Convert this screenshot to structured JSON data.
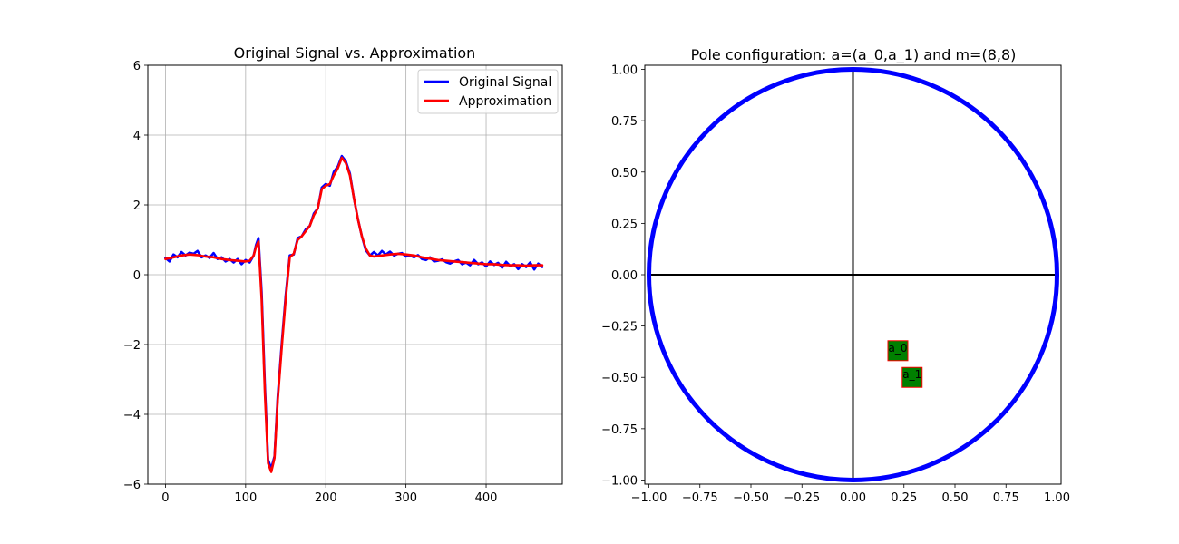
{
  "chart_data": [
    {
      "type": "line",
      "title": "Original Signal vs. Approximation",
      "xlabel": "",
      "ylabel": "",
      "xlim": [
        -22,
        495
      ],
      "ylim": [
        -6,
        6
      ],
      "x_ticks": [
        0,
        100,
        200,
        300,
        400
      ],
      "y_ticks": [
        -6,
        -4,
        -2,
        0,
        2,
        4,
        6
      ],
      "grid": true,
      "legend_position": "top-right",
      "series": [
        {
          "name": "Original Signal",
          "color": "#0000ff",
          "x": [
            0,
            5,
            10,
            15,
            20,
            25,
            30,
            35,
            40,
            45,
            50,
            55,
            60,
            65,
            70,
            75,
            80,
            85,
            90,
            95,
            100,
            105,
            110,
            113,
            116,
            120,
            124,
            128,
            132,
            136,
            140,
            145,
            150,
            155,
            160,
            165,
            170,
            175,
            180,
            185,
            190,
            195,
            200,
            205,
            210,
            215,
            220,
            225,
            230,
            235,
            240,
            245,
            250,
            255,
            260,
            265,
            270,
            275,
            280,
            285,
            290,
            295,
            300,
            305,
            310,
            315,
            320,
            325,
            330,
            335,
            340,
            345,
            350,
            355,
            360,
            365,
            370,
            375,
            380,
            385,
            390,
            395,
            400,
            405,
            410,
            415,
            420,
            425,
            430,
            435,
            440,
            445,
            450,
            455,
            460,
            465,
            470
          ],
          "values": [
            0.48,
            0.38,
            0.58,
            0.5,
            0.65,
            0.55,
            0.63,
            0.6,
            0.68,
            0.5,
            0.55,
            0.48,
            0.62,
            0.45,
            0.5,
            0.38,
            0.45,
            0.35,
            0.45,
            0.3,
            0.42,
            0.35,
            0.55,
            0.85,
            1.05,
            -0.5,
            -3.2,
            -5.3,
            -5.55,
            -5.2,
            -3.5,
            -2.0,
            -0.6,
            0.55,
            0.58,
            1.05,
            1.1,
            1.3,
            1.4,
            1.75,
            1.9,
            2.5,
            2.6,
            2.55,
            2.95,
            3.1,
            3.4,
            3.25,
            2.9,
            2.2,
            1.6,
            1.1,
            0.7,
            0.55,
            0.65,
            0.55,
            0.68,
            0.58,
            0.66,
            0.55,
            0.6,
            0.62,
            0.52,
            0.55,
            0.5,
            0.56,
            0.45,
            0.42,
            0.5,
            0.38,
            0.4,
            0.44,
            0.36,
            0.32,
            0.38,
            0.42,
            0.3,
            0.35,
            0.27,
            0.42,
            0.3,
            0.35,
            0.24,
            0.38,
            0.28,
            0.34,
            0.2,
            0.37,
            0.25,
            0.3,
            0.16,
            0.3,
            0.22,
            0.35,
            0.15,
            0.32,
            0.22
          ]
        },
        {
          "name": "Approximation",
          "color": "#ff0000",
          "x": [
            0,
            10,
            20,
            30,
            40,
            50,
            60,
            70,
            80,
            90,
            100,
            105,
            110,
            113,
            116,
            120,
            124,
            128,
            132,
            136,
            140,
            145,
            150,
            155,
            160,
            165,
            170,
            175,
            180,
            185,
            190,
            195,
            200,
            205,
            210,
            215,
            220,
            225,
            230,
            235,
            240,
            245,
            250,
            255,
            260,
            270,
            280,
            290,
            300,
            310,
            320,
            330,
            340,
            350,
            360,
            370,
            380,
            390,
            400,
            410,
            420,
            430,
            440,
            450,
            460,
            470
          ],
          "values": [
            0.45,
            0.5,
            0.55,
            0.58,
            0.56,
            0.52,
            0.5,
            0.45,
            0.42,
            0.4,
            0.38,
            0.4,
            0.55,
            0.8,
            0.95,
            -0.7,
            -3.4,
            -5.4,
            -5.65,
            -5.25,
            -3.6,
            -2.1,
            -0.7,
            0.5,
            0.6,
            1.0,
            1.1,
            1.25,
            1.4,
            1.7,
            1.9,
            2.45,
            2.55,
            2.6,
            2.85,
            3.05,
            3.35,
            3.2,
            2.85,
            2.2,
            1.6,
            1.1,
            0.75,
            0.55,
            0.52,
            0.55,
            0.58,
            0.6,
            0.58,
            0.55,
            0.5,
            0.46,
            0.42,
            0.4,
            0.38,
            0.36,
            0.34,
            0.32,
            0.3,
            0.3,
            0.28,
            0.27,
            0.27,
            0.26,
            0.27,
            0.27
          ]
        }
      ]
    },
    {
      "type": "scatter",
      "title": "Pole configuration: a=(a_0,a_1) and m=(8,8)",
      "xlabel": "",
      "ylabel": "",
      "xlim": [
        -1.02,
        1.02
      ],
      "ylim": [
        -1.02,
        1.02
      ],
      "x_ticks": [
        -1.0,
        -0.75,
        -0.5,
        -0.25,
        0.0,
        0.25,
        0.5,
        0.75,
        1.0
      ],
      "x_tick_labels": [
        "−1.00",
        "−0.75",
        "−0.50",
        "−0.25",
        "0.00",
        "0.25",
        "0.50",
        "0.75",
        "1.00"
      ],
      "y_ticks": [
        1.0,
        0.75,
        0.5,
        0.25,
        0.0,
        -0.25,
        -0.5,
        -0.75,
        -1.0
      ],
      "y_tick_labels": [
        "1.00",
        "0.75",
        "0.50",
        "0.25",
        "0.00",
        "−0.25",
        "−0.50",
        "−0.75",
        "−1.00"
      ],
      "grid": false,
      "unit_circle_color": "#0000ff",
      "axis_line_color": "#000000",
      "marker_fill": "#008000",
      "marker_edge": "#ff0000",
      "points": [
        {
          "label": "a_0",
          "x": 0.22,
          "y": -0.37
        },
        {
          "label": "a_1",
          "x": 0.29,
          "y": -0.5
        }
      ]
    }
  ]
}
